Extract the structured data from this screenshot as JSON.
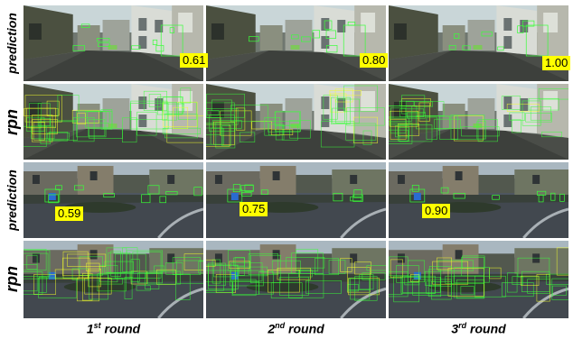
{
  "row_labels": {
    "prediction_top": "prediction",
    "rpn_top": "rpn",
    "prediction_bottom": "prediction",
    "rpn_bottom": "rpn"
  },
  "columns": [
    {
      "label_num": "1",
      "label_sup": "st",
      "label_rest": " round"
    },
    {
      "label_num": "2",
      "label_sup": "nd",
      "label_rest": " round"
    },
    {
      "label_num": "3",
      "label_sup": "rd",
      "label_rest": " round"
    }
  ],
  "scores_top": [
    "0.61",
    "0.80",
    "1.00"
  ],
  "scores_bottom": [
    "0.59",
    "0.75",
    "0.90"
  ],
  "colors": {
    "box_green": "#39ff39",
    "box_yellow": "#f4ff2a",
    "score_bg": "#ffff00"
  }
}
